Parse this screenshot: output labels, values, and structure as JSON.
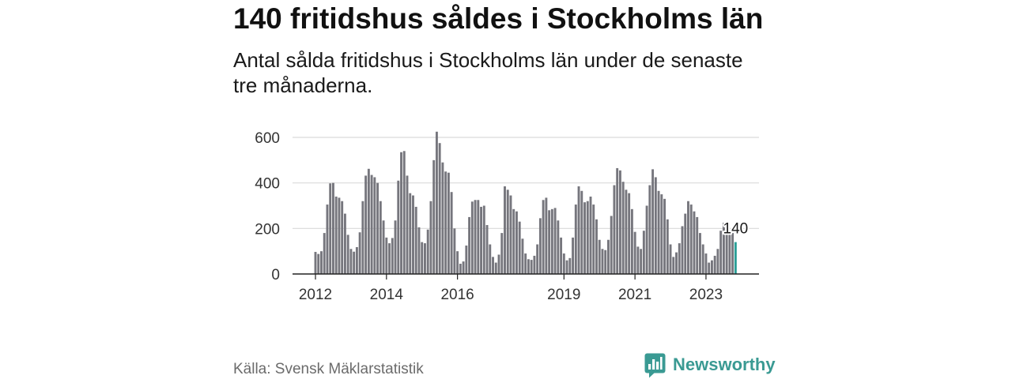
{
  "chart_data": {
    "type": "bar",
    "title": "140 fritidshus såldes i Stockholms län",
    "subtitle": "Antal sålda fritidshus i Stockholms län under de senaste tre månaderna.",
    "xlabel": "",
    "ylabel": "",
    "x_start": {
      "year": 2012,
      "month": 1
    },
    "x_ticks": [
      {
        "year": 2012,
        "label": "2012"
      },
      {
        "year": 2014,
        "label": "2014"
      },
      {
        "year": 2016,
        "label": "2016"
      },
      {
        "year": 2019,
        "label": "2019"
      },
      {
        "year": 2021,
        "label": "2021"
      },
      {
        "year": 2023,
        "label": "2023"
      }
    ],
    "values": [
      97,
      88,
      100,
      180,
      305,
      398,
      400,
      340,
      335,
      320,
      265,
      172,
      110,
      98,
      118,
      183,
      320,
      432,
      462,
      435,
      425,
      400,
      320,
      235,
      160,
      135,
      158,
      235,
      410,
      535,
      540,
      432,
      355,
      345,
      295,
      205,
      140,
      135,
      195,
      320,
      500,
      625,
      575,
      490,
      450,
      445,
      360,
      200,
      100,
      45,
      55,
      125,
      250,
      318,
      325,
      325,
      295,
      300,
      215,
      130,
      75,
      50,
      85,
      180,
      385,
      370,
      345,
      285,
      275,
      230,
      155,
      90,
      65,
      62,
      80,
      130,
      245,
      325,
      335,
      280,
      285,
      290,
      235,
      160,
      90,
      60,
      70,
      160,
      305,
      385,
      365,
      315,
      320,
      340,
      305,
      240,
      150,
      110,
      105,
      150,
      255,
      390,
      465,
      455,
      405,
      370,
      355,
      285,
      185,
      120,
      110,
      190,
      300,
      390,
      460,
      425,
      365,
      350,
      330,
      240,
      130,
      75,
      95,
      135,
      210,
      265,
      320,
      305,
      275,
      250,
      180,
      130,
      90,
      50,
      60,
      80,
      110,
      190,
      225,
      205,
      185,
      180,
      140
    ],
    "ylim": [
      0,
      600
    ],
    "yticks": [
      0,
      200,
      400,
      600
    ],
    "grid": true,
    "highlight_last": true,
    "annotation": {
      "text": "140"
    }
  },
  "source": "Källa: Svensk Mäklarstatistik",
  "brand": {
    "name": "Newsworthy",
    "icon": "newsworthy-logo-icon"
  },
  "colors": {
    "bar": "#76767d",
    "highlight": "#2b9e96",
    "grid": "#d9d9d9",
    "axis": "#222222",
    "brand": "#3a9a93"
  }
}
